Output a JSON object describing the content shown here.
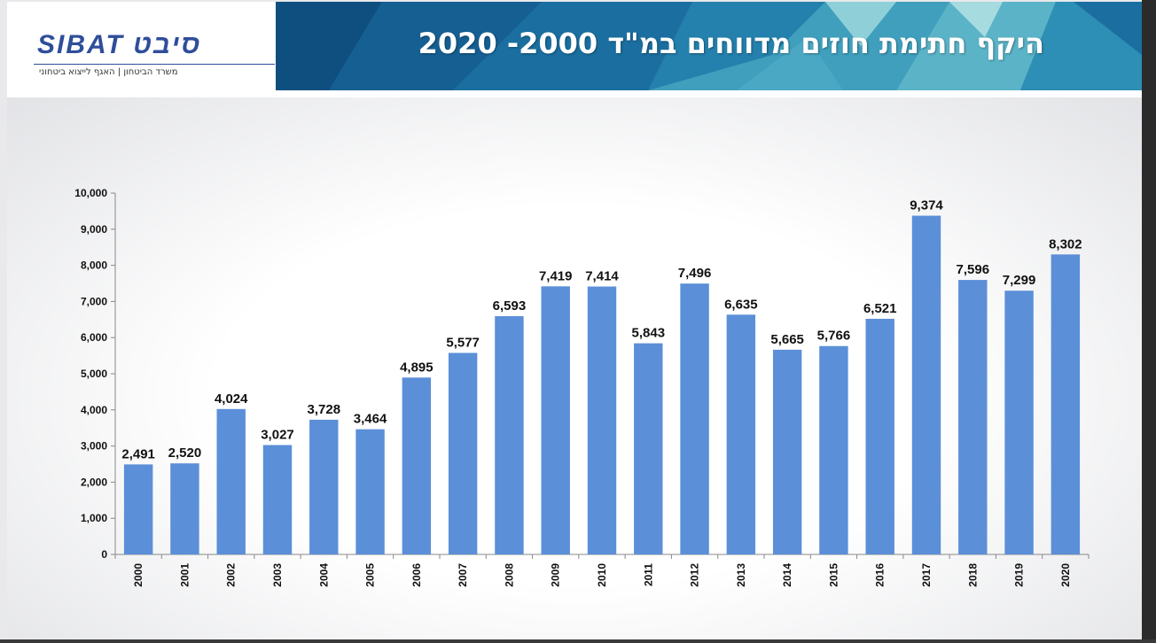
{
  "header": {
    "title": "היקף חתימת חוזים מדווחים במ\"ד 2000- 2020",
    "title_color": "#ffffff",
    "band_colors": [
      "#0f4f80",
      "#1a6fa0",
      "#2d8fb5",
      "#5bb3c7",
      "#8fd0d8"
    ]
  },
  "logo": {
    "text": "SIBAT סיבט",
    "subtitle": "משרד הביטחון | האגף לייצוא ביטחוני",
    "color": "#2f4e9a"
  },
  "chart_data": {
    "type": "bar",
    "title": "",
    "xlabel": "",
    "ylabel": "",
    "categories": [
      "2000",
      "2001",
      "2002",
      "2003",
      "2004",
      "2005",
      "2006",
      "2007",
      "2008",
      "2009",
      "2010",
      "2011",
      "2012",
      "2013",
      "2014",
      "2015",
      "2016",
      "2017",
      "2018",
      "2019",
      "2020"
    ],
    "values": [
      2491,
      2520,
      4024,
      3027,
      3728,
      3464,
      4895,
      5577,
      6593,
      7419,
      7414,
      5843,
      7496,
      6635,
      5665,
      5766,
      6521,
      9374,
      7596,
      7299,
      8302
    ],
    "value_labels": [
      "2,491",
      "2,520",
      "4,024",
      "3,027",
      "3,728",
      "3,464",
      "4,895",
      "5,577",
      "6,593",
      "7,419",
      "7,414",
      "5,843",
      "7,496",
      "6,635",
      "5,665",
      "5,766",
      "6,521",
      "9,374",
      "7,596",
      "7,299",
      "8,302"
    ],
    "ylim": [
      0,
      10000
    ],
    "y_ticks": [
      0,
      1000,
      2000,
      3000,
      4000,
      5000,
      6000,
      7000,
      8000,
      9000,
      10000
    ],
    "y_tick_labels": [
      "0",
      "1,000",
      "2,000",
      "3,000",
      "4,000",
      "5,000",
      "6,000",
      "7,000",
      "8,000",
      "9,000",
      "10,000"
    ],
    "bar_color": "#5b8fd8",
    "grid": false,
    "legend": "none"
  }
}
